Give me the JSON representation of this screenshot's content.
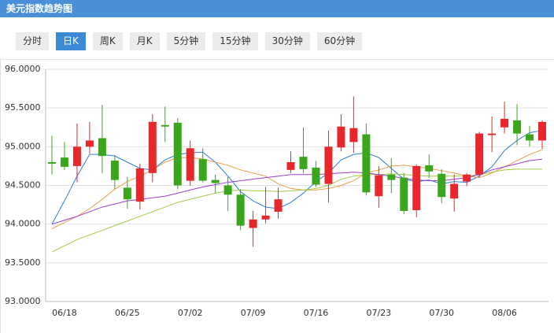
{
  "header": {
    "title": "美元指数趋势图"
  },
  "tabs": [
    "分时",
    "日K",
    "周K",
    "月K",
    "5分钟",
    "15分钟",
    "30分钟",
    "60分钟"
  ],
  "active_tab": 1,
  "chart_data": {
    "type": "candlestick",
    "categories": [
      null,
      "06/18",
      null,
      null,
      null,
      null,
      "06/25",
      null,
      null,
      null,
      null,
      "07/02",
      null,
      null,
      null,
      null,
      "07/09",
      null,
      null,
      null,
      null,
      "07/16",
      null,
      null,
      null,
      null,
      "07/23",
      null,
      null,
      null,
      null,
      "07/30",
      null,
      null,
      null,
      null,
      "08/06",
      null,
      null,
      null
    ],
    "open": [
      94.8,
      94.86,
      94.75,
      95.0,
      95.11,
      94.82,
      94.47,
      94.29,
      94.66,
      95.28,
      95.31,
      94.56,
      94.84,
      94.57,
      94.5,
      94.38,
      93.95,
      94.06,
      94.16,
      94.7,
      94.87,
      94.73,
      94.52,
      94.99,
      95.06,
      95.16,
      94.36,
      94.64,
      94.6,
      94.18,
      94.76,
      94.65,
      94.33,
      94.55,
      94.64,
      95.15,
      95.25,
      95.34,
      95.16,
      95.08
    ],
    "high": [
      95.14,
      95.06,
      95.3,
      95.32,
      95.54,
      94.89,
      94.61,
      94.78,
      95.42,
      95.52,
      95.37,
      95.08,
      94.98,
      94.64,
      94.61,
      94.45,
      94.17,
      94.48,
      94.47,
      94.94,
      95.25,
      94.81,
      95.21,
      95.42,
      95.65,
      95.3,
      94.75,
      94.85,
      94.66,
      94.77,
      94.9,
      94.71,
      94.64,
      94.66,
      95.19,
      95.39,
      95.58,
      95.55,
      95.27,
      95.34
    ],
    "low": [
      94.64,
      94.7,
      94.54,
      94.91,
      94.66,
      94.45,
      94.2,
      94.19,
      94.54,
      95.06,
      94.45,
      94.5,
      94.54,
      94.4,
      94.17,
      93.92,
      93.71,
      94.01,
      94.07,
      94.66,
      94.66,
      94.48,
      94.28,
      94.94,
      94.92,
      94.37,
      94.21,
      94.4,
      94.13,
      94.09,
      94.6,
      94.27,
      94.16,
      94.49,
      94.6,
      94.93,
      95.17,
      95.02,
      95.0,
      94.97
    ],
    "close": [
      94.78,
      94.74,
      95.0,
      95.08,
      94.88,
      94.57,
      94.32,
      94.72,
      95.32,
      95.26,
      94.5,
      94.98,
      94.56,
      94.53,
      94.38,
      93.98,
      94.06,
      94.11,
      94.32,
      94.8,
      94.71,
      94.51,
      95.0,
      95.26,
      95.24,
      94.41,
      94.63,
      94.57,
      94.17,
      94.75,
      94.68,
      94.35,
      94.52,
      94.64,
      95.17,
      95.17,
      95.36,
      95.17,
      95.08,
      95.32
    ],
    "up_color": "#e8262c",
    "down_color": "#3aa61b",
    "lines": [
      {
        "color": "#2f7fd1",
        "values": [
          94.0,
          94.3,
          94.62,
          94.9,
          94.9,
          94.88,
          94.8,
          94.72,
          94.7,
          94.83,
          94.9,
          94.92,
          94.93,
          94.8,
          94.62,
          94.42,
          94.3,
          94.22,
          94.2,
          94.28,
          94.4,
          94.55,
          94.66,
          94.83,
          94.9,
          94.92,
          94.86,
          94.72,
          94.58,
          94.55,
          94.57,
          94.52,
          94.55,
          94.54,
          94.62,
          94.74,
          94.95,
          95.08,
          95.18,
          95.21
        ]
      },
      {
        "color": "#e6a04a",
        "values": [
          93.94,
          94.02,
          94.1,
          94.2,
          94.32,
          94.45,
          94.55,
          94.62,
          94.7,
          94.8,
          94.86,
          94.86,
          94.84,
          94.8,
          94.76,
          94.7,
          94.66,
          94.62,
          94.52,
          94.46,
          94.44,
          94.44,
          94.46,
          94.5,
          94.56,
          94.66,
          94.7,
          94.75,
          94.76,
          94.74,
          94.72,
          94.69,
          94.66,
          94.62,
          94.6,
          94.66,
          94.74,
          94.82,
          94.9,
          94.96
        ]
      },
      {
        "color": "#a3cc47",
        "values": [
          93.64,
          93.72,
          93.8,
          93.86,
          93.92,
          93.98,
          94.04,
          94.1,
          94.16,
          94.22,
          94.28,
          94.32,
          94.36,
          94.4,
          94.43,
          94.44,
          94.43,
          94.43,
          94.42,
          94.43,
          94.44,
          94.46,
          94.5,
          94.58,
          94.62,
          94.64,
          94.64,
          94.65,
          94.64,
          94.63,
          94.62,
          94.62,
          94.62,
          94.62,
          94.64,
          94.67,
          94.7,
          94.71,
          94.71,
          94.71
        ]
      },
      {
        "color": "#9b3fd1",
        "values": [
          94.0,
          94.05,
          94.1,
          94.16,
          94.22,
          94.26,
          94.3,
          94.32,
          94.34,
          94.36,
          94.4,
          94.44,
          94.48,
          94.51,
          94.54,
          94.56,
          94.58,
          94.6,
          94.62,
          94.64,
          94.64,
          94.64,
          94.65,
          94.66,
          94.67,
          94.66,
          94.64,
          94.62,
          94.59,
          94.57,
          94.56,
          94.56,
          94.58,
          94.6,
          94.64,
          94.7,
          94.74,
          94.78,
          94.82,
          94.84
        ]
      }
    ],
    "ylim": [
      93,
      96
    ],
    "yticks": [
      {
        "value": 93,
        "label": "93.0000"
      },
      {
        "value": 93.5,
        "label": "93.5000"
      },
      {
        "value": 94,
        "label": "94.0000"
      },
      {
        "value": 94.5,
        "label": "94.5000"
      },
      {
        "value": 95,
        "label": "95.0000"
      },
      {
        "value": 95.5,
        "label": "95.5000"
      },
      {
        "value": 96,
        "label": "96.0000"
      }
    ],
    "grid": true
  }
}
